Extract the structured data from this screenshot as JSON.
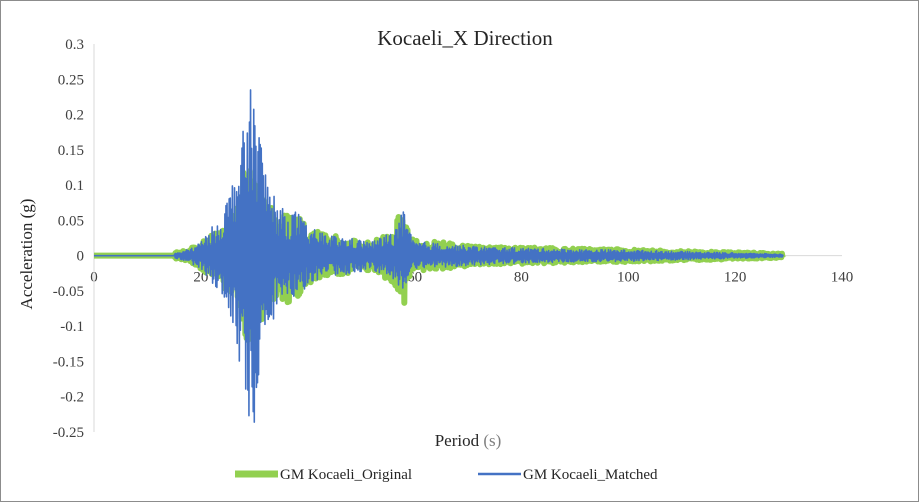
{
  "chart_data": {
    "type": "line",
    "title": "Kocaeli_X Direction",
    "xlabel": "Period",
    "xlabel_unit": "(s)",
    "ylabel": "Acceleration (g)",
    "xlim": [
      0,
      140
    ],
    "ylim": [
      -0.25,
      0.3
    ],
    "x_ticks": [
      "0",
      "20",
      "40",
      "60",
      "80",
      "100",
      "120",
      "140"
    ],
    "y_ticks": [
      "0.3",
      "0.25",
      "0.2",
      "0.15",
      "0.1",
      "0.05",
      "0",
      "-0.05",
      "-0.1",
      "-0.15",
      "-0.2",
      "-0.25"
    ],
    "grid": false,
    "legend_position": "bottom",
    "series": [
      {
        "name": "GM Kocaeli_Original",
        "color": "#92d050",
        "x_range": [
          0,
          129
        ],
        "envelope": [
          [
            0,
            0.0015
          ],
          [
            14,
            0.002
          ],
          [
            16,
            0.006
          ],
          [
            18,
            0.01
          ],
          [
            20,
            0.02
          ],
          [
            22,
            0.03
          ],
          [
            24,
            0.045
          ],
          [
            26,
            0.06
          ],
          [
            28,
            0.12
          ],
          [
            29,
            0.13
          ],
          [
            30,
            0.12
          ],
          [
            31,
            0.1
          ],
          [
            32,
            0.08
          ],
          [
            34,
            0.06
          ],
          [
            36,
            0.07
          ],
          [
            38,
            0.06
          ],
          [
            40,
            0.04
          ],
          [
            44,
            0.03
          ],
          [
            48,
            0.025
          ],
          [
            52,
            0.02
          ],
          [
            56,
            0.04
          ],
          [
            58,
            0.07
          ],
          [
            59,
            0.04
          ],
          [
            60,
            0.022
          ],
          [
            64,
            0.02
          ],
          [
            70,
            0.015
          ],
          [
            75,
            0.012
          ],
          [
            80,
            0.012
          ],
          [
            90,
            0.01
          ],
          [
            100,
            0.009
          ],
          [
            110,
            0.007
          ],
          [
            120,
            0.005
          ],
          [
            125,
            0.004
          ],
          [
            129,
            0.003
          ]
        ]
      },
      {
        "name": "GM Kocaeli_Matched",
        "color": "#4472c4",
        "x_range": [
          0,
          129
        ],
        "envelope": [
          [
            0,
            0.001
          ],
          [
            14,
            0.0015
          ],
          [
            16,
            0.005
          ],
          [
            18,
            0.01
          ],
          [
            20,
            0.02
          ],
          [
            22,
            0.04
          ],
          [
            24,
            0.06
          ],
          [
            26,
            0.11
          ],
          [
            27,
            0.15
          ],
          [
            28,
            0.18
          ],
          [
            29,
            0.23
          ],
          [
            30,
            0.25
          ],
          [
            31,
            0.18
          ],
          [
            32,
            0.13
          ],
          [
            34,
            0.08
          ],
          [
            36,
            0.06
          ],
          [
            38,
            0.065
          ],
          [
            40,
            0.04
          ],
          [
            44,
            0.03
          ],
          [
            48,
            0.025
          ],
          [
            52,
            0.02
          ],
          [
            56,
            0.035
          ],
          [
            58,
            0.065
          ],
          [
            59,
            0.035
          ],
          [
            60,
            0.02
          ],
          [
            64,
            0.018
          ],
          [
            70,
            0.014
          ],
          [
            75,
            0.012
          ],
          [
            80,
            0.011
          ],
          [
            90,
            0.009
          ],
          [
            100,
            0.008
          ],
          [
            110,
            0.006
          ],
          [
            120,
            0.004
          ],
          [
            125,
            0.003
          ],
          [
            129,
            0.002
          ]
        ]
      }
    ]
  }
}
